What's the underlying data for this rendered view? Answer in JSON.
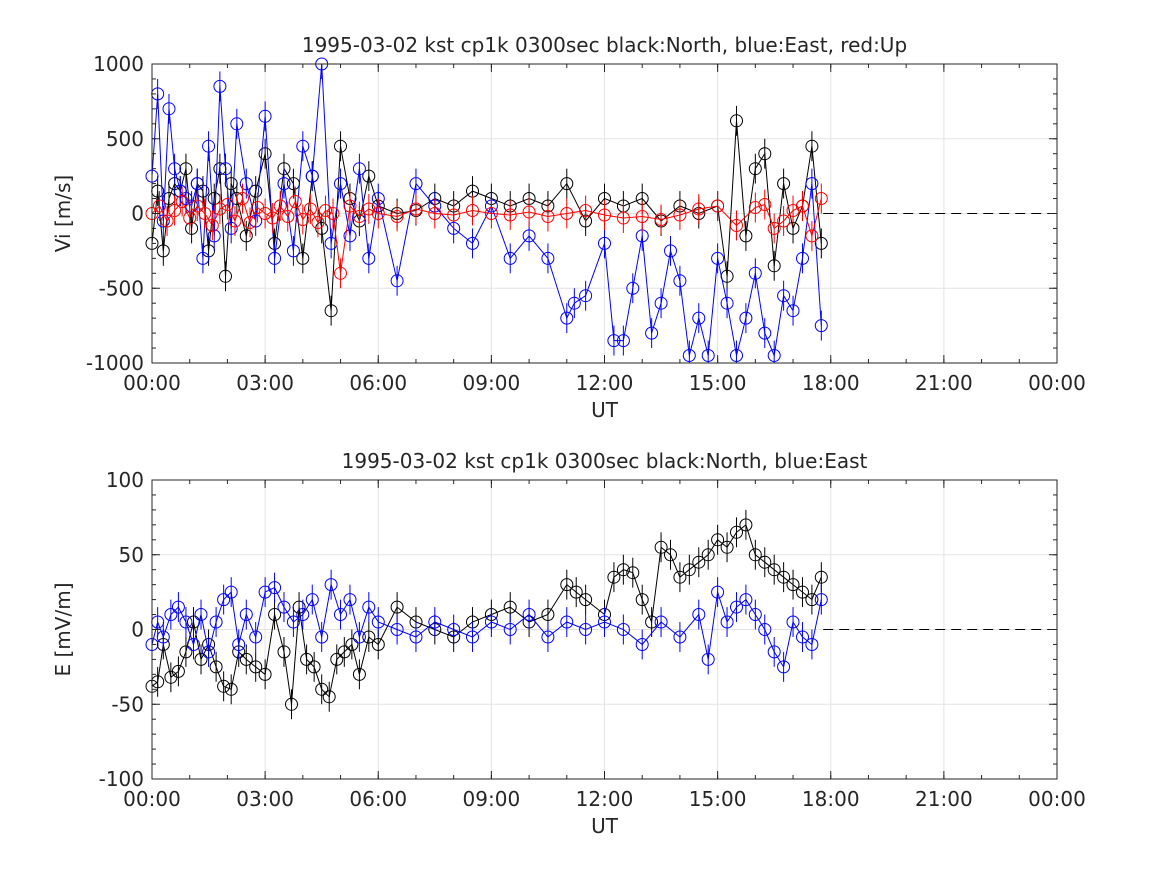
{
  "chart_data": [
    {
      "type": "scatter",
      "title": "1995-03-02 kst cp1k 0300sec black:North, blue:East, red:Up",
      "xlabel": "UT",
      "ylabel": "Vi [m/s]",
      "xlim": [
        0,
        24
      ],
      "ylim": [
        -1000,
        1000
      ],
      "xticks": [
        0,
        3,
        6,
        9,
        12,
        15,
        18,
        21,
        24
      ],
      "xtick_labels": [
        "00:00",
        "03:00",
        "06:00",
        "09:00",
        "12:00",
        "15:00",
        "18:00",
        "21:00",
        "00:00"
      ],
      "yticks": [
        -1000,
        -500,
        0,
        500,
        1000
      ],
      "ytick_labels": [
        "-1000",
        "-500",
        "0",
        "500",
        "1000"
      ],
      "grid": true,
      "zero_line": {
        "from": 17.8,
        "to": 24,
        "style": "dashed",
        "color": "#000000"
      },
      "series": [
        {
          "name": "North",
          "color": "#000000",
          "x": [
            0.0,
            0.15,
            0.3,
            0.45,
            0.6,
            0.75,
            0.9,
            1.05,
            1.2,
            1.35,
            1.5,
            1.65,
            1.8,
            1.95,
            2.1,
            2.25,
            2.5,
            2.75,
            3.0,
            3.25,
            3.5,
            3.75,
            4.0,
            4.25,
            4.5,
            4.75,
            5.0,
            5.25,
            5.5,
            5.75,
            6.0,
            6.5,
            7.0,
            7.5,
            8.0,
            8.5,
            9.0,
            9.5,
            10.0,
            10.5,
            11.0,
            11.5,
            12.0,
            12.5,
            13.0,
            13.5,
            14.0,
            14.5,
            15.0,
            15.25,
            15.5,
            15.75,
            16.0,
            16.25,
            16.5,
            16.75,
            17.0,
            17.25,
            17.5,
            17.75
          ],
          "y": [
            -200,
            150,
            -250,
            100,
            200,
            150,
            300,
            -100,
            200,
            150,
            -250,
            100,
            300,
            -420,
            200,
            100,
            -150,
            150,
            400,
            -200,
            300,
            200,
            -300,
            250,
            -100,
            -650,
            450,
            100,
            -50,
            250,
            50,
            0,
            20,
            100,
            50,
            150,
            100,
            50,
            100,
            50,
            200,
            -50,
            100,
            50,
            100,
            -50,
            50,
            0,
            50,
            -420,
            620,
            -150,
            300,
            400,
            -350,
            200,
            -100,
            50,
            450,
            -200
          ]
        },
        {
          "name": "East",
          "color": "#0000ff",
          "x": [
            0.0,
            0.15,
            0.3,
            0.45,
            0.6,
            0.75,
            0.9,
            1.05,
            1.2,
            1.35,
            1.5,
            1.65,
            1.8,
            1.95,
            2.1,
            2.25,
            2.5,
            2.75,
            3.0,
            3.25,
            3.5,
            3.75,
            4.0,
            4.25,
            4.5,
            4.75,
            5.0,
            5.25,
            5.5,
            5.75,
            6.0,
            6.5,
            7.0,
            7.5,
            8.0,
            8.5,
            9.0,
            9.5,
            10.0,
            10.5,
            11.0,
            11.2,
            11.5,
            12.0,
            12.25,
            12.5,
            12.75,
            13.0,
            13.25,
            13.5,
            13.75,
            14.0,
            14.25,
            14.5,
            14.75,
            15.0,
            15.25,
            15.5,
            15.75,
            16.0,
            16.25,
            16.5,
            16.75,
            17.0,
            17.25,
            17.5,
            17.75
          ],
          "y": [
            250,
            800,
            -50,
            700,
            300,
            150,
            100,
            50,
            200,
            -300,
            450,
            -150,
            850,
            300,
            -100,
            600,
            200,
            -50,
            650,
            -300,
            200,
            -250,
            450,
            250,
            1000,
            -200,
            200,
            -150,
            300,
            -300,
            100,
            -450,
            200,
            50,
            -100,
            -200,
            50,
            -300,
            -150,
            -300,
            -700,
            -600,
            -550,
            -200,
            -850,
            -850,
            -500,
            -150,
            -800,
            -600,
            -250,
            -450,
            -950,
            -700,
            -950,
            -300,
            -600,
            -950,
            -700,
            -400,
            -800,
            -950,
            -550,
            -650,
            -300,
            200,
            -750
          ]
        },
        {
          "name": "Up",
          "color": "#ff0000",
          "x": [
            0.0,
            0.2,
            0.4,
            0.6,
            0.8,
            1.0,
            1.2,
            1.4,
            1.6,
            1.8,
            2.0,
            2.2,
            2.4,
            2.6,
            2.8,
            3.0,
            3.2,
            3.4,
            3.6,
            3.8,
            4.0,
            4.2,
            4.4,
            4.6,
            4.8,
            5.0,
            5.25,
            5.5,
            5.75,
            6.0,
            6.5,
            7.0,
            7.5,
            8.0,
            8.5,
            9.0,
            9.5,
            10.0,
            10.5,
            11.0,
            11.5,
            12.0,
            12.5,
            13.0,
            13.5,
            14.0,
            14.5,
            15.0,
            15.5,
            16.0,
            16.25,
            16.5,
            16.75,
            17.0,
            17.25,
            17.5,
            17.75
          ],
          "y": [
            0,
            50,
            -50,
            20,
            80,
            -30,
            50,
            0,
            -80,
            30,
            60,
            -50,
            100,
            -60,
            40,
            0,
            -30,
            50,
            -20,
            80,
            -40,
            30,
            -60,
            20,
            0,
            -400,
            50,
            -20,
            30,
            0,
            -20,
            30,
            0,
            -10,
            20,
            0,
            -10,
            10,
            -20,
            0,
            20,
            -10,
            -30,
            -20,
            -40,
            -10,
            30,
            50,
            -80,
            40,
            60,
            -100,
            -50,
            20,
            50,
            -150,
            100
          ]
        }
      ]
    },
    {
      "type": "scatter",
      "title": "1995-03-02 kst cp1k 0300sec black:North, blue:East",
      "xlabel": "UT",
      "ylabel": "E [mV/m]",
      "xlim": [
        0,
        24
      ],
      "ylim": [
        -100,
        100
      ],
      "xticks": [
        0,
        3,
        6,
        9,
        12,
        15,
        18,
        21,
        24
      ],
      "xtick_labels": [
        "00:00",
        "03:00",
        "06:00",
        "09:00",
        "12:00",
        "15:00",
        "18:00",
        "21:00",
        "00:00"
      ],
      "yticks": [
        -100,
        -50,
        0,
        50,
        100
      ],
      "ytick_labels": [
        "-100",
        "-50",
        "0",
        "50",
        "100"
      ],
      "grid": true,
      "zero_line": {
        "from": 17.8,
        "to": 24,
        "style": "dashed",
        "color": "#000000"
      },
      "series": [
        {
          "name": "North",
          "color": "#000000",
          "x": [
            0.0,
            0.15,
            0.3,
            0.5,
            0.7,
            0.9,
            1.1,
            1.3,
            1.5,
            1.7,
            1.9,
            2.1,
            2.3,
            2.5,
            2.75,
            3.0,
            3.25,
            3.5,
            3.7,
            3.9,
            4.1,
            4.3,
            4.5,
            4.7,
            4.9,
            5.1,
            5.3,
            5.5,
            5.75,
            6.0,
            6.5,
            7.0,
            7.5,
            8.0,
            8.5,
            9.0,
            9.5,
            10.0,
            10.5,
            11.0,
            11.25,
            11.5,
            12.0,
            12.25,
            12.5,
            12.75,
            13.0,
            13.25,
            13.5,
            13.75,
            14.0,
            14.25,
            14.5,
            14.75,
            15.0,
            15.25,
            15.5,
            15.75,
            16.0,
            16.25,
            16.5,
            16.75,
            17.0,
            17.25,
            17.5,
            17.75
          ],
          "y": [
            -38,
            -35,
            -10,
            -32,
            -28,
            -15,
            5,
            -20,
            -10,
            -25,
            -38,
            -40,
            -15,
            -20,
            -25,
            -30,
            10,
            -15,
            -50,
            15,
            -20,
            -25,
            -40,
            -45,
            -20,
            -15,
            -10,
            -30,
            -5,
            -10,
            15,
            5,
            0,
            -5,
            5,
            10,
            15,
            5,
            10,
            30,
            25,
            20,
            10,
            35,
            40,
            38,
            20,
            5,
            55,
            50,
            35,
            40,
            45,
            50,
            60,
            55,
            65,
            70,
            50,
            45,
            40,
            35,
            30,
            25,
            20,
            35
          ]
        },
        {
          "name": "East",
          "color": "#0000ff",
          "x": [
            0.0,
            0.15,
            0.3,
            0.5,
            0.7,
            0.9,
            1.1,
            1.3,
            1.5,
            1.7,
            1.9,
            2.1,
            2.3,
            2.5,
            2.75,
            3.0,
            3.25,
            3.5,
            3.75,
            4.0,
            4.25,
            4.5,
            4.75,
            5.0,
            5.25,
            5.5,
            5.75,
            6.0,
            6.5,
            7.0,
            7.5,
            8.0,
            8.5,
            9.0,
            9.5,
            10.0,
            10.5,
            11.0,
            11.5,
            12.0,
            12.5,
            13.0,
            13.5,
            14.0,
            14.5,
            14.75,
            15.0,
            15.25,
            15.5,
            15.75,
            16.0,
            16.25,
            16.5,
            16.75,
            17.0,
            17.25,
            17.5,
            17.75
          ],
          "y": [
            -10,
            5,
            -5,
            10,
            15,
            5,
            -10,
            10,
            -15,
            5,
            20,
            25,
            -10,
            10,
            -5,
            25,
            28,
            15,
            5,
            10,
            20,
            -5,
            30,
            10,
            20,
            -5,
            15,
            5,
            0,
            -5,
            5,
            0,
            -5,
            5,
            0,
            10,
            -5,
            5,
            0,
            5,
            0,
            -10,
            5,
            -5,
            10,
            -20,
            25,
            5,
            15,
            20,
            10,
            0,
            -15,
            -25,
            5,
            -5,
            -10,
            20
          ]
        }
      ]
    }
  ]
}
